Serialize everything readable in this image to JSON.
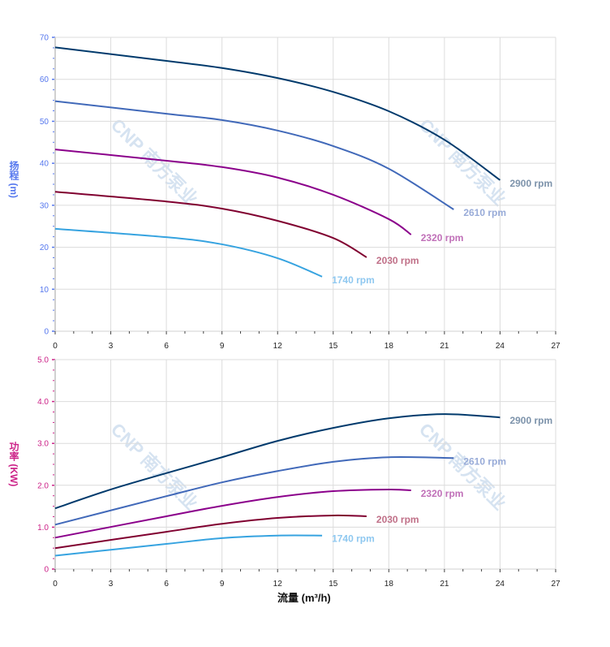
{
  "watermark": "CNP 南方泵业",
  "x_axis": {
    "label": "流量 (m³/h)",
    "range": [
      0,
      27
    ],
    "ticks": [
      0,
      3,
      6,
      9,
      12,
      15,
      18,
      21,
      24,
      27
    ]
  },
  "chart_data": [
    {
      "type": "line",
      "ylabel": "扬程 (m)",
      "ylabel_color": "#5577ee",
      "ylim": [
        0,
        70
      ],
      "yticks": [
        "0",
        "10",
        "20",
        "30",
        "40",
        "50",
        "60",
        "70"
      ],
      "grid": true,
      "series": [
        {
          "name": "2900 rpm",
          "color": "#003a6c",
          "label_color": "#7d93ab",
          "x": [
            0,
            6,
            9,
            12,
            15,
            18,
            21,
            24
          ],
          "y": [
            67.6,
            64.4,
            62.7,
            60.3,
            57.0,
            52.4,
            45.6,
            36.0
          ]
        },
        {
          "name": "2610 rpm",
          "color": "#4169b9",
          "label_color": "#98abd8",
          "x": [
            0,
            6,
            9,
            12,
            15,
            18,
            21.5
          ],
          "y": [
            54.8,
            51.8,
            50.3,
            47.8,
            44.1,
            38.7,
            29.0
          ]
        },
        {
          "name": "2320 rpm",
          "color": "#8b008b",
          "label_color": "#c070b8",
          "x": [
            0,
            6,
            9,
            12,
            15,
            18,
            19.2
          ],
          "y": [
            43.3,
            40.6,
            39.1,
            36.6,
            32.5,
            26.7,
            23.0
          ]
        },
        {
          "name": "2030 rpm",
          "color": "#800030",
          "label_color": "#c07088",
          "x": [
            0,
            6,
            9,
            12,
            15,
            16.8
          ],
          "y": [
            33.2,
            30.9,
            29.2,
            26.3,
            22.2,
            17.6
          ]
        },
        {
          "name": "1740 rpm",
          "color": "#36a3e0",
          "label_color": "#8fc8f0",
          "x": [
            0,
            6,
            9,
            12,
            14.4
          ],
          "y": [
            24.4,
            22.4,
            20.7,
            17.4,
            13.0
          ]
        }
      ]
    },
    {
      "type": "line",
      "ylabel": "功率 (KW)",
      "ylabel_color": "#cc2288",
      "ylim": [
        0,
        5
      ],
      "yticks": [
        "0",
        "1.0",
        "2.0",
        "3.0",
        "4.0",
        "5.0"
      ],
      "grid": true,
      "series": [
        {
          "name": "2900 rpm",
          "color": "#003a6c",
          "label_color": "#7d93ab",
          "x": [
            0,
            3,
            6,
            9,
            12,
            15,
            18,
            21,
            24
          ],
          "y": [
            1.45,
            1.9,
            2.29,
            2.67,
            3.06,
            3.37,
            3.6,
            3.7,
            3.62
          ]
        },
        {
          "name": "2610 rpm",
          "color": "#4169b9",
          "label_color": "#98abd8",
          "x": [
            0,
            6,
            9,
            12,
            15,
            18,
            21.5
          ],
          "y": [
            1.06,
            1.74,
            2.07,
            2.34,
            2.56,
            2.67,
            2.65
          ]
        },
        {
          "name": "2320 rpm",
          "color": "#8b008b",
          "label_color": "#c070b8",
          "x": [
            0,
            6,
            9,
            12,
            15,
            18,
            19.2
          ],
          "y": [
            0.75,
            1.26,
            1.51,
            1.72,
            1.86,
            1.9,
            1.88
          ]
        },
        {
          "name": "2030 rpm",
          "color": "#800030",
          "label_color": "#c07088",
          "x": [
            0,
            6,
            9,
            12,
            15,
            16.8
          ],
          "y": [
            0.5,
            0.89,
            1.08,
            1.22,
            1.28,
            1.26
          ]
        },
        {
          "name": "1740 rpm",
          "color": "#36a3e0",
          "label_color": "#8fc8f0",
          "x": [
            0,
            6,
            9,
            12,
            14.4
          ],
          "y": [
            0.32,
            0.6,
            0.74,
            0.8,
            0.8
          ]
        }
      ]
    }
  ]
}
